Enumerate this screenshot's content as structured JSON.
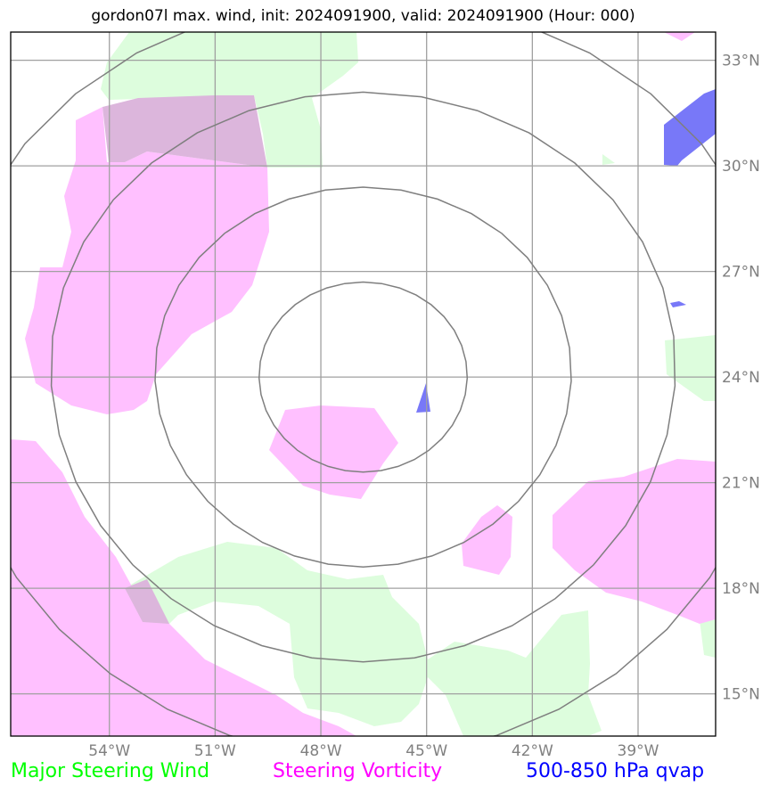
{
  "title": "gordon07l max. wind, init: 2024091900, valid: 2024091900 (Hour: 000)",
  "map": {
    "lon_range": [
      -56.8,
      -36.8
    ],
    "lat_range": [
      13.8,
      33.8
    ],
    "lon_ticks": [
      {
        "lon": -54,
        "label": "54°W"
      },
      {
        "lon": -51,
        "label": "51°W"
      },
      {
        "lon": -48,
        "label": "48°W"
      },
      {
        "lon": -45,
        "label": "45°W"
      },
      {
        "lon": -42,
        "label": "42°W"
      },
      {
        "lon": -39,
        "label": "39°W"
      }
    ],
    "lat_ticks": [
      {
        "lat": 15,
        "label": "15°N"
      },
      {
        "lat": 18,
        "label": "18°N"
      },
      {
        "lat": 21,
        "label": "21°N"
      },
      {
        "lat": 24,
        "label": "24°N"
      },
      {
        "lat": 27,
        "label": "27°N"
      },
      {
        "lat": 30,
        "label": "30°N"
      },
      {
        "lat": 33,
        "label": "33°N"
      }
    ],
    "storm_center": {
      "lon": -46.8,
      "lat": 24.0
    },
    "range_rings_km": [
      300,
      600,
      900,
      1200
    ],
    "colors": {
      "wind": "#ddfddd",
      "vorticity": "#ffc0ff",
      "overlap": "#dcb6dc",
      "qvap": "#7878f8",
      "grid": "#a0a0a0",
      "rings": "#7f7f7f"
    }
  },
  "legend": {
    "wind": {
      "label": "Major Steering Wind",
      "color": "#00ff00"
    },
    "vorticity": {
      "label": "Steering Vorticity",
      "color": "#ff00ff"
    },
    "qvap": {
      "label": "500-850 hPa qvap",
      "color": "#0000ff"
    }
  }
}
